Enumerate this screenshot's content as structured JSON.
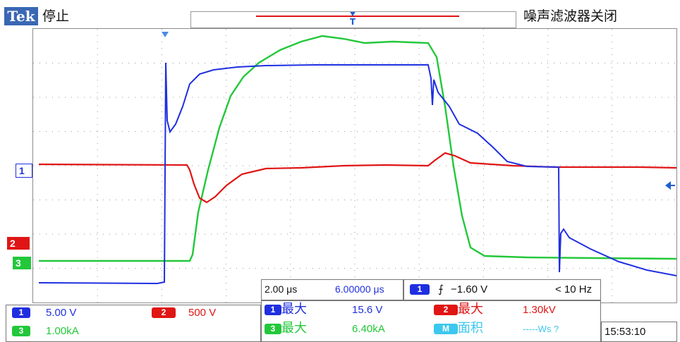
{
  "header": {
    "logo": "Tek",
    "run_status": "停止",
    "filter_status": "噪声滤波器关闭"
  },
  "markers": {
    "ch1_ground": "1",
    "ch2_ground": "2",
    "ch3_ground": "3"
  },
  "timebase": {
    "scale": "2.00 μs",
    "position": "6.00000 μs"
  },
  "trigger": {
    "source": "1",
    "slope_symbol": "⨍",
    "level": "−1.60 V",
    "frequency": "< 10 Hz"
  },
  "channel_scales": [
    {
      "channel": "1",
      "value": "5.00 V",
      "color": "#1f2fe0"
    },
    {
      "channel": "2",
      "value": "500 V",
      "color": "#e01515"
    },
    {
      "channel": "3",
      "value": "1.00kA",
      "color": "#22c83a"
    }
  ],
  "measurements": [
    {
      "channel": "1",
      "name": "最大",
      "value": "15.6 V",
      "color": "#1f2fe0"
    },
    {
      "channel": "2",
      "name": "最大",
      "value": "1.30kV",
      "color": "#e01515"
    },
    {
      "channel": "3",
      "name": "最大",
      "value": "6.40kA",
      "color": "#22c83a"
    },
    {
      "channel": "M",
      "name": "面积",
      "value": "-----Ws ?",
      "color": "#3cc7ee"
    }
  ],
  "clock": "15:53:10",
  "colors": {
    "ch1": "#1f2fe0",
    "ch2": "#e01515",
    "ch3": "#22c83a",
    "math": "#3cc7ee",
    "grid": "#9a9a9a"
  }
}
